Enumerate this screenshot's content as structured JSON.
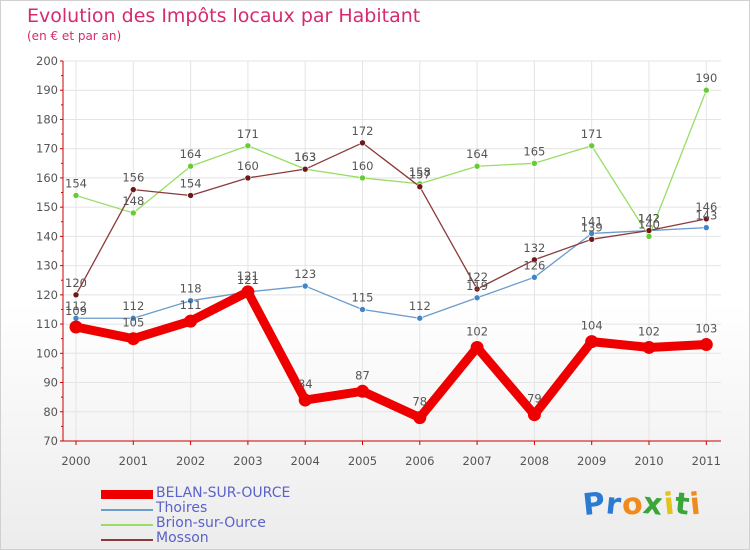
{
  "header": {
    "title": "Evolution des Impôts locaux par Habitant",
    "subtitle": "(en € et par an)"
  },
  "logo": {
    "text": "Proxiti",
    "letters": [
      "P",
      "r",
      "o",
      "x",
      "i",
      "t",
      "i"
    ],
    "colors": [
      "#2b7bd4",
      "#2b7bd4",
      "#f08a1c",
      "#3aa63a",
      "#e3c21a",
      "#3aa63a",
      "#f08a1c"
    ]
  },
  "colors": {
    "title": "#d72a6e",
    "axis": "#cc0000",
    "grid": "#e4e4e4",
    "label": "#555555",
    "legend_text": "#5b62c9"
  },
  "chart_data": {
    "type": "line",
    "title": "Evolution des Impôts locaux par Habitant",
    "subtitle": "(en € et par an)",
    "xlabel": "",
    "ylabel": "",
    "categories": [
      "2000",
      "2001",
      "2002",
      "2003",
      "2004",
      "2005",
      "2006",
      "2007",
      "2008",
      "2009",
      "2010",
      "2011"
    ],
    "ylim": [
      70,
      200
    ],
    "yticks": [
      70,
      80,
      90,
      100,
      110,
      120,
      130,
      140,
      150,
      160,
      170,
      180,
      190,
      200
    ],
    "grid": true,
    "legend_position": "bottom-left",
    "series": [
      {
        "name": "BELAN-SUR-OURCE",
        "color": "#ee0000",
        "weight": "bold",
        "values": [
          109,
          105,
          111,
          121,
          84,
          87,
          78,
          102,
          79,
          104,
          102,
          103
        ],
        "labels": [
          "109",
          "105",
          "111",
          "121",
          "84",
          "87",
          "78",
          "102",
          "79",
          "104",
          "102",
          "103"
        ]
      },
      {
        "name": "Thoires",
        "color": "#6b9ccc",
        "marker": "#3f86c9",
        "weight": "thin",
        "values": [
          112,
          112,
          118,
          121,
          123,
          115,
          112,
          119,
          126,
          141,
          142,
          143
        ],
        "labels": [
          "112",
          "112",
          "118",
          "121",
          "123",
          "115",
          "112",
          "119",
          "126",
          "141",
          "142",
          "143"
        ]
      },
      {
        "name": "Brion-sur-Ource",
        "color": "#99dd66",
        "marker": "#66cc33",
        "weight": "thin",
        "values": [
          154,
          148,
          164,
          171,
          163,
          160,
          158,
          164,
          165,
          171,
          140,
          190
        ],
        "labels": [
          "154",
          "148",
          "164",
          "171",
          "163",
          "160",
          "158",
          "164",
          "165",
          "171",
          "140",
          "190"
        ]
      },
      {
        "name": "Mosson",
        "color": "#8a3a3a",
        "marker": "#6e1818",
        "weight": "thin",
        "values": [
          120,
          156,
          154,
          160,
          163,
          172,
          157,
          122,
          132,
          139,
          142,
          146
        ],
        "labels": [
          "120",
          "156",
          "154",
          "160",
          "163",
          "172",
          "157",
          "122",
          "132",
          "139",
          "142",
          "146"
        ]
      }
    ]
  }
}
